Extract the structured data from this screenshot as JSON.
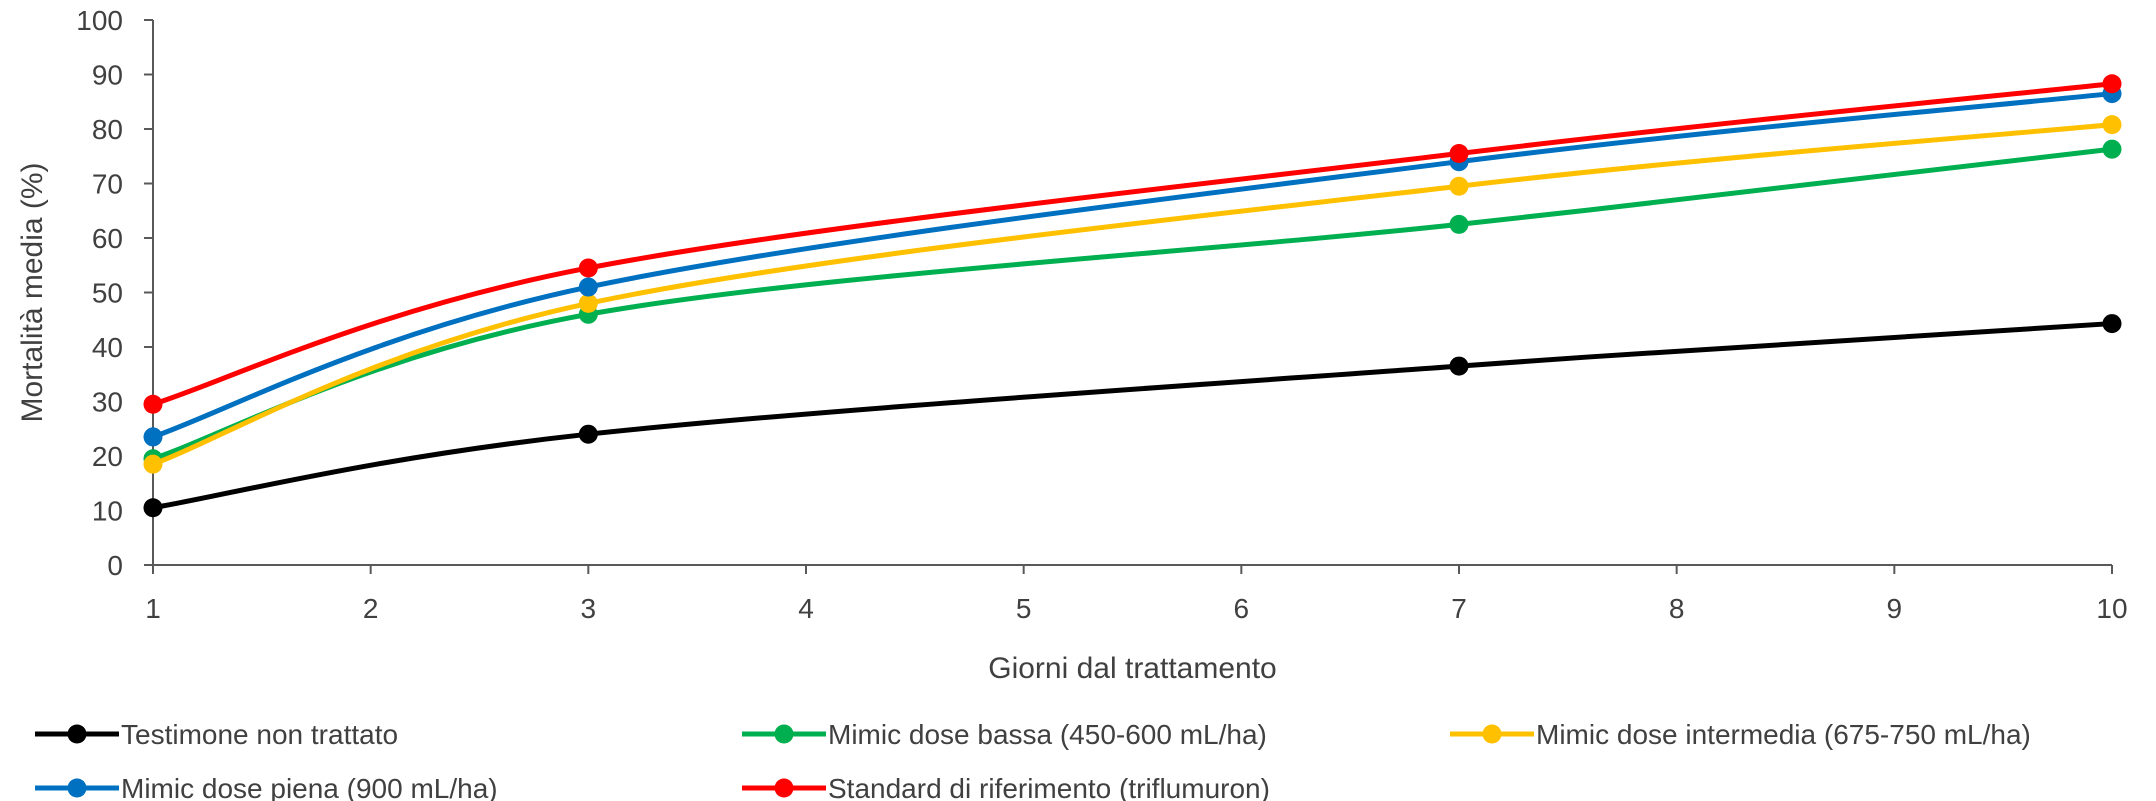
{
  "chart_data": {
    "type": "line",
    "title": "",
    "xlabel": "Giorni dal trattamento",
    "ylabel": "Mortalità media (%)",
    "xlim": [
      1,
      10
    ],
    "ylim": [
      0,
      100
    ],
    "x_ticks": [
      1,
      2,
      3,
      4,
      5,
      6,
      7,
      8,
      9,
      10
    ],
    "y_ticks": [
      0,
      10,
      20,
      30,
      40,
      50,
      60,
      70,
      80,
      90,
      100
    ],
    "grid": false,
    "legend_position": "bottom",
    "x": [
      1,
      3,
      7,
      10
    ],
    "series": [
      {
        "name": "Testimone non trattato",
        "color": "#000000",
        "values": [
          10.5,
          24,
          36.5,
          44.3
        ]
      },
      {
        "name": "Mimic dose bassa (450-600 mL/ha)",
        "color": "#00b050",
        "values": [
          19.5,
          46,
          62.5,
          76.3
        ]
      },
      {
        "name": "Mimic dose intermedia (675-750 mL/ha)",
        "color": "#ffc000",
        "values": [
          18.5,
          48,
          69.5,
          80.8
        ]
      },
      {
        "name": "Mimic dose piena (900 mL/ha)",
        "color": "#0070c0",
        "values": [
          23.5,
          51,
          74,
          86.5
        ]
      },
      {
        "name": "Standard di riferimento (triflumuron)",
        "color": "#ff0000",
        "values": [
          29.5,
          54.5,
          75.5,
          88.3
        ]
      }
    ]
  }
}
